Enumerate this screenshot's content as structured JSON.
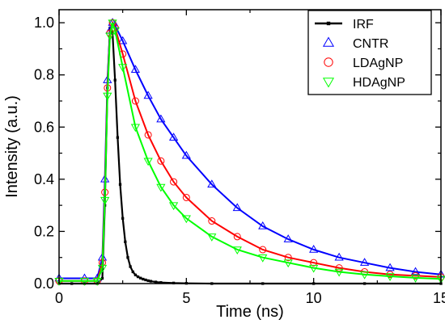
{
  "chart_data": {
    "type": "scatter",
    "title": "",
    "xlabel": "Time (ns)",
    "ylabel": "Intensity (a.u.)",
    "xlim": [
      0,
      15
    ],
    "ylim": [
      0,
      1.05
    ],
    "x_ticks": [
      0,
      5,
      10,
      15
    ],
    "y_ticks": [
      0.0,
      0.2,
      0.4,
      0.6,
      0.8,
      1.0
    ],
    "x_tick_labels": [
      "0",
      "5",
      "10",
      "15"
    ],
    "y_tick_labels": [
      "0.0",
      "0.2",
      "0.4",
      "0.6",
      "0.8",
      "1.0"
    ],
    "grid": false,
    "legend_position": "top-right",
    "series": [
      {
        "name": "IRF",
        "color": "#000000",
        "marker": "filled-square-line",
        "x": [
          0.0,
          0.5,
          1.0,
          1.5,
          1.7,
          1.8,
          1.9,
          2.0,
          2.1,
          2.2,
          2.3,
          2.4,
          2.5,
          2.6,
          2.7,
          2.8,
          2.9,
          3.0,
          3.1,
          3.2,
          3.3,
          3.4,
          3.5,
          3.6,
          3.8,
          4.0,
          4.5,
          5.0,
          6.0,
          8.0,
          10.0,
          12.0,
          15.0
        ],
        "y": [
          0.0,
          0.0,
          0.0,
          0.0,
          0.02,
          0.3,
          0.75,
          0.98,
          0.96,
          0.78,
          0.56,
          0.38,
          0.25,
          0.16,
          0.1,
          0.065,
          0.045,
          0.033,
          0.026,
          0.021,
          0.017,
          0.014,
          0.011,
          0.009,
          0.006,
          0.004,
          0.002,
          0.001,
          0.0,
          0.0,
          0.0,
          0.0,
          0.0
        ]
      },
      {
        "name": "CNTR",
        "color": "#0000ff",
        "marker": "triangle-up-open",
        "x": [
          0.0,
          1.0,
          1.5,
          1.7,
          1.8,
          1.9,
          2.0,
          2.1,
          2.2,
          2.5,
          3.0,
          3.5,
          4.0,
          4.5,
          5.0,
          6.0,
          7.0,
          8.0,
          9.0,
          10.0,
          11.0,
          12.0,
          13.0,
          14.0,
          15.0
        ],
        "y": [
          0.02,
          0.02,
          0.02,
          0.1,
          0.4,
          0.78,
          0.97,
          1.0,
          0.99,
          0.93,
          0.82,
          0.72,
          0.63,
          0.56,
          0.49,
          0.38,
          0.29,
          0.22,
          0.17,
          0.13,
          0.1,
          0.08,
          0.06,
          0.045,
          0.035
        ]
      },
      {
        "name": "LDAgNP",
        "color": "#ff0000",
        "marker": "circle-open",
        "x": [
          0.0,
          1.0,
          1.5,
          1.7,
          1.8,
          1.9,
          2.0,
          2.1,
          2.2,
          2.5,
          3.0,
          3.5,
          4.0,
          4.5,
          5.0,
          6.0,
          7.0,
          8.0,
          9.0,
          10.0,
          11.0,
          12.0,
          13.0,
          14.0,
          15.0
        ],
        "y": [
          0.01,
          0.01,
          0.01,
          0.08,
          0.35,
          0.75,
          0.96,
          1.0,
          0.98,
          0.88,
          0.7,
          0.57,
          0.47,
          0.39,
          0.33,
          0.24,
          0.18,
          0.13,
          0.1,
          0.08,
          0.06,
          0.045,
          0.035,
          0.03,
          0.025
        ]
      },
      {
        "name": "HDAgNP",
        "color": "#00ff00",
        "marker": "triangle-down-open",
        "x": [
          0.0,
          1.0,
          1.5,
          1.7,
          1.8,
          1.9,
          2.0,
          2.1,
          2.2,
          2.5,
          3.0,
          3.5,
          4.0,
          4.5,
          5.0,
          6.0,
          7.0,
          8.0,
          9.0,
          10.0,
          11.0,
          12.0,
          13.0,
          14.0,
          15.0
        ],
        "y": [
          0.01,
          0.01,
          0.01,
          0.06,
          0.32,
          0.72,
          0.95,
          1.0,
          0.97,
          0.83,
          0.6,
          0.47,
          0.37,
          0.3,
          0.25,
          0.18,
          0.13,
          0.1,
          0.08,
          0.06,
          0.045,
          0.035,
          0.028,
          0.022,
          0.018
        ]
      }
    ]
  }
}
